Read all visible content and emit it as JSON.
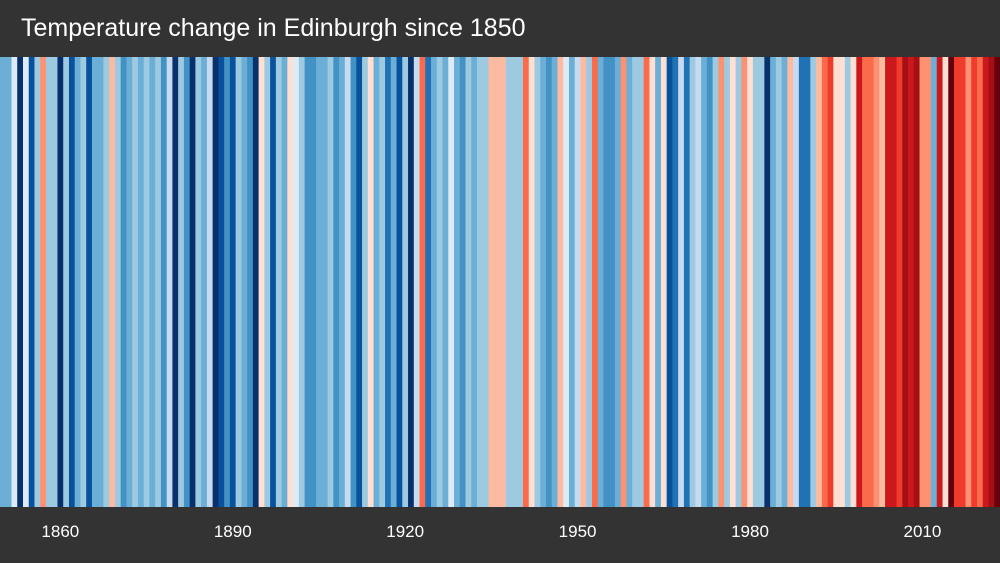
{
  "chart_data": {
    "type": "heatmap",
    "title": "Temperature change in Edinburgh since 1850",
    "x_start_year": 1850,
    "x_end_year": 2023,
    "tick_labels": [
      "1860",
      "1890",
      "1920",
      "1950",
      "1980",
      "2010"
    ],
    "tick_years": [
      1860,
      1890,
      1920,
      1950,
      1980,
      2010
    ],
    "value_unit": "relative temperature anomaly (approx. °C)",
    "color_scale": {
      "thresholds": [
        -3.7,
        -2.5,
        -1.7,
        -1.2,
        -0.8,
        -0.45,
        -0.25,
        0,
        0.2,
        0.45,
        0.8,
        1.2,
        1.7,
        2.2,
        2.7
      ],
      "colors": [
        "#08306b",
        "#08519c",
        "#2171b5",
        "#4292c6",
        "#6baed6",
        "#9ecae1",
        "#c6dbef",
        "#deebf7",
        "#fee0d2",
        "#fcbba1",
        "#fc9272",
        "#fb6a4a",
        "#ef3b2c",
        "#cb181d",
        "#a50f15",
        "#67000d"
      ]
    },
    "values": [
      -1,
      -1,
      -0.2,
      -4,
      -0.2,
      -3.5,
      -0.5,
      0.6,
      -0.6,
      -0.6,
      -4,
      -0.6,
      -3,
      -1,
      -0.6,
      -3,
      -1,
      -1,
      -0.5,
      0.3,
      -0.6,
      -1.5,
      -1,
      -0.6,
      -1,
      -0.6,
      -1,
      -0.6,
      -1.5,
      -0.3,
      -4,
      -0.6,
      -1.5,
      -4,
      -0.6,
      -1,
      -0.3,
      -4,
      -3.5,
      -1.5,
      -3,
      -0.6,
      -1,
      -1.5,
      -4,
      0.1,
      -0.6,
      -3,
      -0.6,
      -1,
      0.1,
      -0.2,
      -0.6,
      -1.5,
      -1.5,
      -1,
      -1,
      -0.6,
      -1.5,
      -1,
      -0.3,
      -1.5,
      -3,
      -0.6,
      0.1,
      -1,
      -0.6,
      -2,
      -1,
      -3,
      -0.6,
      -4,
      -0.3,
      1,
      -2,
      -1,
      -0.6,
      -1,
      -0.2,
      -1,
      -1.5,
      -0.6,
      -1,
      -0.6,
      -0.6,
      0.3,
      0.3,
      0.3,
      -0.6,
      -0.6,
      -0.6,
      1,
      0.1,
      -0.6,
      -1,
      -1.5,
      -1,
      0.3,
      -0.2,
      -1,
      -0.3,
      0.3,
      -0.6,
      1,
      -1,
      -1.5,
      -1.5,
      -1,
      0.6,
      -1,
      -0.6,
      -0.6,
      1,
      0.1,
      -1,
      0.1,
      -3,
      -2,
      -0.3,
      -2,
      -0.6,
      -0.3,
      -1,
      -1.5,
      -0.6,
      0.6,
      -0.6,
      0.1,
      -0.6,
      0.6,
      0.1,
      -0.6,
      -0.6,
      -4,
      -1,
      -0.6,
      -1,
      0.3,
      -0.3,
      -2,
      -2,
      -0.6,
      0.3,
      1,
      1.5,
      0.1,
      0.1,
      -0.6,
      0.1,
      2,
      1,
      1,
      0.6,
      0.3,
      2,
      2,
      1.5,
      2.5,
      2,
      2.5,
      0.6,
      0.6,
      -1,
      2,
      0.1,
      3,
      1.5,
      1.5,
      0.6,
      1.5,
      1,
      2,
      2.5,
      3
    ]
  }
}
